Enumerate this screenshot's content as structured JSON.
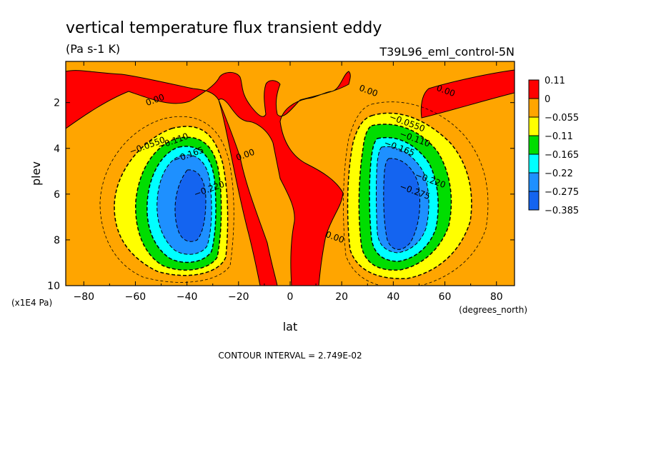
{
  "chart_data": {
    "type": "contour",
    "title": "vertical temperature flux transient eddy",
    "units": "(Pa s-1 K)",
    "subtitle": "T39L96_eml_control-5N",
    "xlabel": "lat",
    "x_units": "(degrees_north)",
    "ylabel": "plev",
    "y_units": "(x1E4 Pa)",
    "xlim": [
      -87,
      87
    ],
    "ylim": [
      10,
      0.2
    ],
    "y_reversed": true,
    "x_ticks": [
      "-80",
      "-60",
      "-40",
      "-20",
      "0",
      "20",
      "40",
      "60",
      "80"
    ],
    "x_tick_values": [
      -80,
      -60,
      -40,
      -20,
      0,
      20,
      40,
      60,
      80
    ],
    "y_ticks": [
      "2",
      "4",
      "6",
      "8",
      "10"
    ],
    "y_tick_values": [
      2,
      4,
      6,
      8,
      10
    ],
    "contour_interval_text": "CONTOUR INTERVAL = 2.749E-02",
    "contour_interval": 0.02749,
    "legend": {
      "position": "right",
      "levels": [
        {
          "label": "0.11",
          "color": "#ff0000"
        },
        {
          "label": "0",
          "color": "#ffa500"
        },
        {
          "label": "−0.055",
          "color": "#ffff00"
        },
        {
          "label": "−0.11",
          "color": "#00dd00"
        },
        {
          "label": "−0.165",
          "color": "#00ffff"
        },
        {
          "label": "−0.22",
          "color": "#1e90ff"
        },
        {
          "label": "−0.275",
          "color": "#1464f0"
        },
        {
          "label": "−0.385",
          "color": "#1464f0"
        }
      ]
    },
    "contour_labels": [
      {
        "text": "0.00",
        "lat": -52,
        "plev": 2.0
      },
      {
        "text": "0.00",
        "lat": 30,
        "plev": 1.6
      },
      {
        "text": "0.00",
        "lat": 60,
        "plev": 1.6
      },
      {
        "text": "0.00",
        "lat": -17,
        "plev": 4.4
      },
      {
        "text": "0.00",
        "lat": 17,
        "plev": 8.0
      },
      {
        "text": "−0.0550",
        "lat": -55,
        "plev": 4.0
      },
      {
        "text": "−0.110",
        "lat": -45,
        "plev": 3.8
      },
      {
        "text": "−0.165",
        "lat": -39,
        "plev": 4.4
      },
      {
        "text": "−0.220",
        "lat": -31,
        "plev": 5.9
      },
      {
        "text": "−0.0550",
        "lat": 45,
        "plev": 3.0
      },
      {
        "text": "−0.110",
        "lat": 48,
        "plev": 3.7
      },
      {
        "text": "−0.165",
        "lat": 42,
        "plev": 4.1
      },
      {
        "text": "−0.275",
        "lat": 48,
        "plev": 6.0
      },
      {
        "text": "−0.220",
        "lat": 54,
        "plev": 5.5
      }
    ],
    "fields": [
      {
        "name": "southern-hemisphere-minimum",
        "lat": -40,
        "plev": 6.2,
        "min": -0.385
      },
      {
        "name": "northern-hemisphere-minimum",
        "lat": 43,
        "plev": 6.0,
        "min": -0.385
      }
    ]
  }
}
